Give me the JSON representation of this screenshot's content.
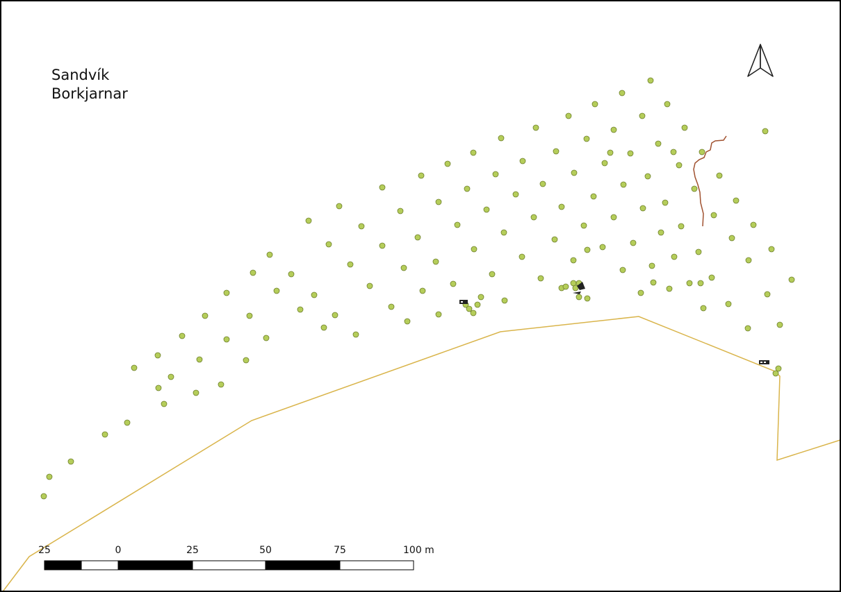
{
  "map": {
    "title_lines": [
      "Sandvík",
      "Borkjarnar"
    ],
    "colors": {
      "points_fill": "#b5cd5a",
      "points_stroke": "#6d7f2a",
      "boundary": "#d9b44a",
      "stream": "#a0512f",
      "frame": "#000000"
    },
    "north_arrow": {
      "icon": "north-arrow-icon"
    },
    "scale_bar": {
      "labels": [
        "25",
        "0",
        "25",
        "50",
        "75",
        "100 m"
      ]
    },
    "layers": {
      "points": "core sample points",
      "boundary": "shoreline / boundary line",
      "stream": "stream line",
      "markers": "small dark feature markers"
    }
  }
}
